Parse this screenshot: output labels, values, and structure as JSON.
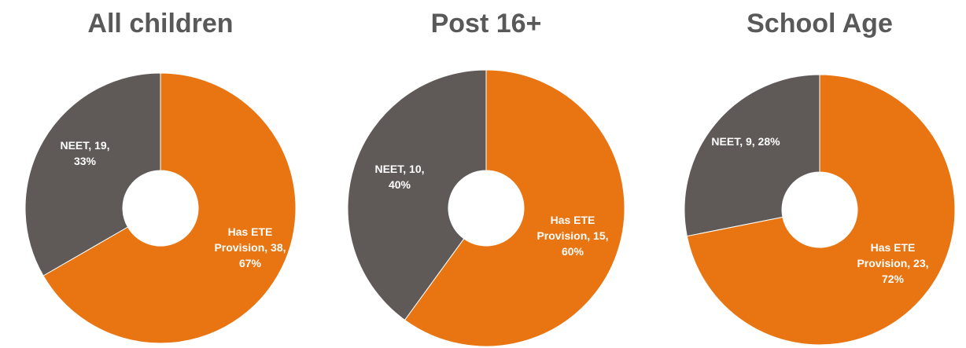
{
  "chart_data": [
    {
      "type": "pie",
      "donut": true,
      "title": "All children",
      "categories": [
        "Has ETE Provision",
        "NEET"
      ],
      "values": [
        38,
        19
      ],
      "value_labels": [
        "Has ETE Provision, 38, 67%",
        "NEET, 19, 33%"
      ],
      "colors": [
        "#e87511",
        "#5f5a58"
      ]
    },
    {
      "type": "pie",
      "donut": true,
      "title": "Post 16+",
      "categories": [
        "Has ETE Provision",
        "NEET"
      ],
      "values": [
        15,
        10
      ],
      "value_labels": [
        "Has ETE Provision, 15, 60%",
        "NEET, 10, 40%"
      ],
      "colors": [
        "#e87511",
        "#5f5a58"
      ]
    },
    {
      "type": "pie",
      "donut": true,
      "title": "School Age",
      "categories": [
        "Has ETE Provision",
        "NEET"
      ],
      "values": [
        23,
        9
      ],
      "value_labels": [
        "Has ETE Provision, 23, 72%",
        "NEET, 9, 28%"
      ],
      "colors": [
        "#e87511",
        "#5f5a58"
      ]
    }
  ]
}
